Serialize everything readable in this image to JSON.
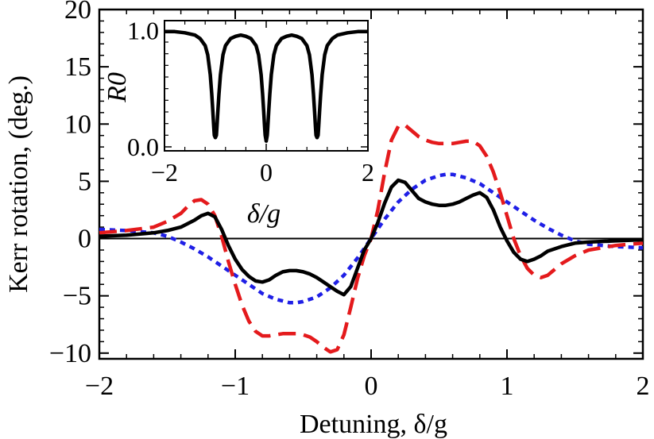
{
  "chart_data": [
    {
      "type": "line",
      "title": "",
      "xlabel": "Detuning, δ/g",
      "ylabel": "Kerr rotation, (deg.)",
      "xlim": [
        -2,
        2
      ],
      "ylim": [
        -10.5,
        20
      ],
      "x_ticks": [
        "−2",
        "−1",
        "0",
        "1",
        "2"
      ],
      "x_tick_values": [
        -2,
        -1,
        0,
        1,
        2
      ],
      "y_ticks": [
        "−10",
        "−5",
        "0",
        "5",
        "10",
        "15",
        "20"
      ],
      "y_tick_values": [
        -10,
        -5,
        0,
        5,
        10,
        15,
        20
      ],
      "grid": false,
      "zero_line": true,
      "series": [
        {
          "color": "#000000",
          "style": "solid",
          "x": [
            -2.0,
            -1.8,
            -1.6,
            -1.5,
            -1.4,
            -1.3,
            -1.25,
            -1.2,
            -1.15,
            -1.1,
            -1.05,
            -1.0,
            -0.95,
            -0.9,
            -0.85,
            -0.8,
            -0.75,
            -0.7,
            -0.65,
            -0.6,
            -0.55,
            -0.5,
            -0.45,
            -0.4,
            -0.35,
            -0.3,
            -0.25,
            -0.2,
            -0.15,
            -0.1,
            -0.05,
            0.0,
            0.05,
            0.1,
            0.15,
            0.2,
            0.25,
            0.3,
            0.35,
            0.4,
            0.45,
            0.5,
            0.55,
            0.6,
            0.65,
            0.7,
            0.75,
            0.8,
            0.85,
            0.9,
            0.95,
            1.0,
            1.05,
            1.1,
            1.15,
            1.2,
            1.25,
            1.3,
            1.4,
            1.5,
            1.6,
            1.8,
            2.0
          ],
          "y": [
            0.2,
            0.3,
            0.5,
            0.7,
            1.0,
            1.6,
            2.0,
            2.2,
            1.9,
            0.8,
            -0.6,
            -1.8,
            -2.7,
            -3.3,
            -3.7,
            -3.8,
            -3.6,
            -3.2,
            -2.9,
            -2.8,
            -2.8,
            -2.9,
            -3.1,
            -3.4,
            -3.8,
            -4.2,
            -4.6,
            -4.9,
            -4.2,
            -2.6,
            -1.0,
            0.0,
            1.4,
            3.1,
            4.5,
            5.1,
            4.9,
            4.2,
            3.5,
            3.2,
            3.0,
            2.9,
            2.9,
            3.0,
            3.2,
            3.5,
            3.8,
            4.0,
            3.6,
            2.5,
            1.0,
            -0.2,
            -1.2,
            -1.8,
            -2.0,
            -1.8,
            -1.5,
            -1.1,
            -0.7,
            -0.4,
            -0.3,
            -0.2,
            -0.1
          ]
        },
        {
          "color": "#e41a1c",
          "style": "dashed",
          "x": [
            -2.0,
            -1.8,
            -1.6,
            -1.5,
            -1.4,
            -1.35,
            -1.3,
            -1.25,
            -1.2,
            -1.15,
            -1.1,
            -1.05,
            -1.0,
            -0.95,
            -0.9,
            -0.85,
            -0.8,
            -0.75,
            -0.7,
            -0.65,
            -0.6,
            -0.55,
            -0.5,
            -0.45,
            -0.4,
            -0.35,
            -0.3,
            -0.25,
            -0.2,
            -0.15,
            -0.1,
            -0.05,
            0.0,
            0.05,
            0.1,
            0.15,
            0.2,
            0.25,
            0.3,
            0.35,
            0.4,
            0.45,
            0.5,
            0.55,
            0.6,
            0.65,
            0.7,
            0.75,
            0.8,
            0.85,
            0.9,
            0.95,
            1.0,
            1.05,
            1.1,
            1.15,
            1.2,
            1.25,
            1.3,
            1.4,
            1.5,
            1.6,
            1.8,
            2.0
          ],
          "y": [
            0.5,
            0.7,
            1.0,
            1.5,
            2.2,
            2.8,
            3.3,
            3.4,
            3.0,
            2.0,
            0.2,
            -2.0,
            -4.0,
            -5.8,
            -7.2,
            -8.1,
            -8.5,
            -8.5,
            -8.4,
            -8.3,
            -8.3,
            -8.3,
            -8.4,
            -8.6,
            -9.0,
            -9.5,
            -9.9,
            -9.7,
            -8.4,
            -6.0,
            -3.5,
            -1.5,
            0.0,
            2.5,
            5.8,
            8.6,
            9.8,
            9.9,
            9.4,
            8.9,
            8.6,
            8.4,
            8.3,
            8.3,
            8.3,
            8.4,
            8.5,
            8.5,
            8.1,
            7.2,
            5.8,
            4.0,
            2.0,
            0.0,
            -1.5,
            -2.6,
            -3.2,
            -3.4,
            -3.2,
            -2.2,
            -1.5,
            -1.0,
            -0.6,
            -0.4
          ]
        },
        {
          "color": "#1f1fe6",
          "style": "dotted",
          "x": [
            -2.0,
            -1.8,
            -1.6,
            -1.5,
            -1.4,
            -1.3,
            -1.2,
            -1.1,
            -1.0,
            -0.9,
            -0.8,
            -0.7,
            -0.6,
            -0.55,
            -0.5,
            -0.4,
            -0.3,
            -0.2,
            -0.1,
            0.0,
            0.1,
            0.2,
            0.3,
            0.4,
            0.5,
            0.55,
            0.6,
            0.7,
            0.8,
            0.9,
            1.0,
            1.1,
            1.2,
            1.3,
            1.4,
            1.5,
            1.6,
            1.8,
            2.0
          ],
          "y": [
            0.8,
            0.7,
            0.5,
            0.2,
            -0.3,
            -0.9,
            -1.6,
            -2.4,
            -3.2,
            -4.0,
            -4.8,
            -5.3,
            -5.6,
            -5.6,
            -5.5,
            -5.1,
            -4.3,
            -3.2,
            -1.7,
            0.0,
            1.7,
            3.2,
            4.3,
            5.1,
            5.5,
            5.6,
            5.6,
            5.3,
            4.8,
            4.0,
            3.2,
            2.4,
            1.6,
            0.9,
            0.3,
            -0.2,
            -0.5,
            -0.7,
            -0.8
          ]
        }
      ]
    },
    {
      "type": "line",
      "title": "",
      "xlabel": "δ/g",
      "ylabel": "R0",
      "xlim": [
        -2,
        2
      ],
      "ylim": [
        0,
        1.05
      ],
      "x_ticks": [
        "−2",
        "0",
        "2"
      ],
      "x_tick_values": [
        -2,
        0,
        2
      ],
      "y_ticks": [
        "0.0",
        "1.0"
      ],
      "y_tick_values": [
        0,
        1
      ],
      "grid": false,
      "series": [
        {
          "color": "#000000",
          "style": "solid",
          "x": [
            -2.0,
            -1.8,
            -1.6,
            -1.4,
            -1.3,
            -1.2,
            -1.15,
            -1.1,
            -1.07,
            -1.05,
            -1.03,
            -1.02,
            -1.0,
            -0.98,
            -0.97,
            -0.95,
            -0.93,
            -0.9,
            -0.85,
            -0.8,
            -0.7,
            -0.6,
            -0.5,
            -0.4,
            -0.3,
            -0.2,
            -0.15,
            -0.1,
            -0.07,
            -0.05,
            -0.03,
            -0.02,
            0.0,
            0.02,
            0.03,
            0.05,
            0.07,
            0.1,
            0.15,
            0.2,
            0.3,
            0.4,
            0.5,
            0.6,
            0.7,
            0.8,
            0.85,
            0.9,
            0.93,
            0.95,
            0.97,
            0.98,
            1.0,
            1.02,
            1.03,
            1.05,
            1.07,
            1.1,
            1.15,
            1.2,
            1.3,
            1.4,
            1.6,
            1.8,
            2.0
          ],
          "y": [
            0.99,
            0.99,
            0.98,
            0.96,
            0.93,
            0.87,
            0.79,
            0.62,
            0.45,
            0.31,
            0.16,
            0.1,
            0.08,
            0.1,
            0.16,
            0.31,
            0.45,
            0.62,
            0.79,
            0.87,
            0.93,
            0.95,
            0.96,
            0.95,
            0.93,
            0.87,
            0.79,
            0.62,
            0.45,
            0.31,
            0.16,
            0.1,
            0.05,
            0.1,
            0.16,
            0.31,
            0.45,
            0.62,
            0.79,
            0.87,
            0.93,
            0.95,
            0.96,
            0.95,
            0.93,
            0.87,
            0.79,
            0.62,
            0.45,
            0.31,
            0.16,
            0.1,
            0.08,
            0.1,
            0.16,
            0.31,
            0.45,
            0.62,
            0.79,
            0.87,
            0.93,
            0.96,
            0.98,
            0.99,
            0.99
          ]
        }
      ]
    }
  ]
}
